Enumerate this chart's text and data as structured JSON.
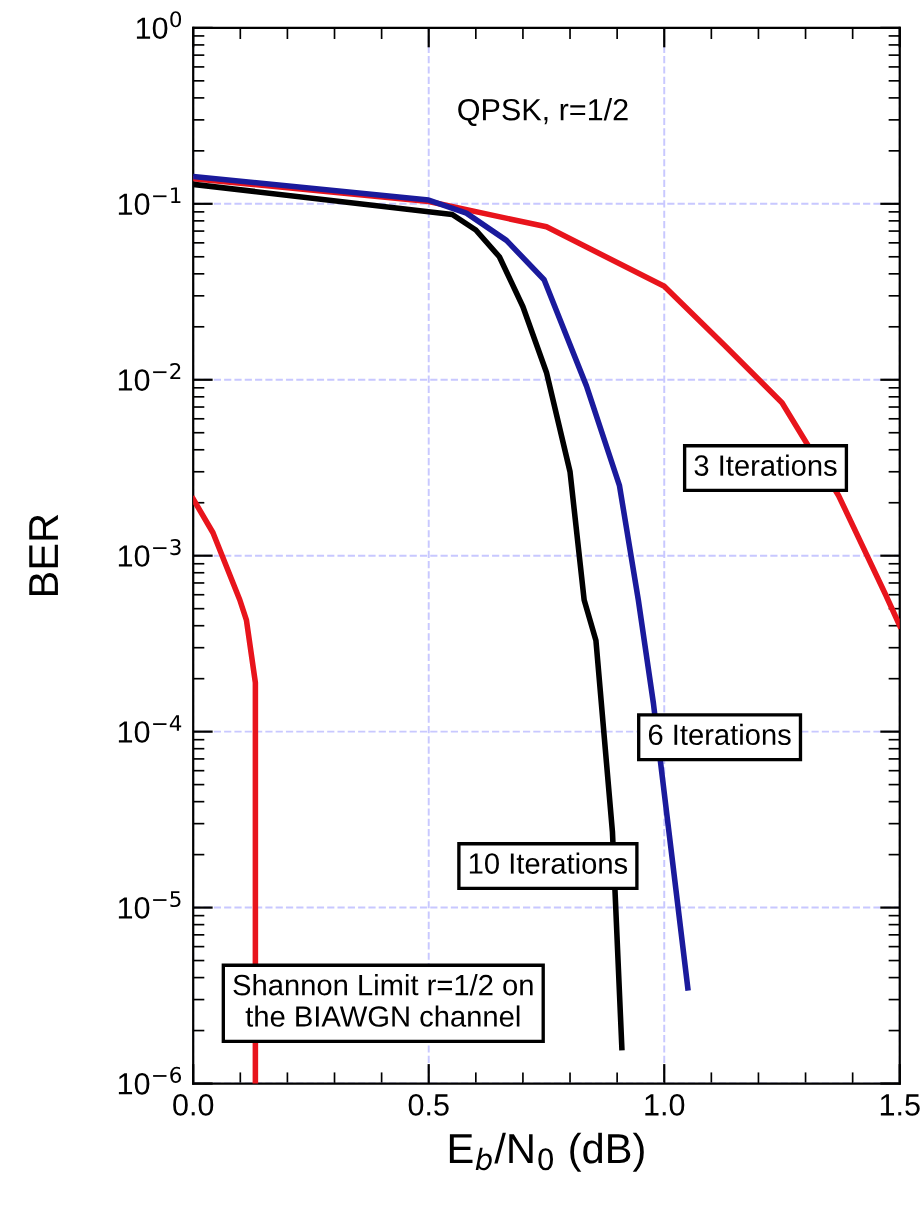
{
  "chart_data": {
    "type": "line",
    "title": "QPSK, r=1/2",
    "xlabel": "E$_{b}$/N$_{0}$ (dB)",
    "ylabel": "BER",
    "log": "y",
    "grid": true,
    "legend": false,
    "marker": "none",
    "line_style": "solid",
    "xlim": [
      0,
      1.5
    ],
    "xticks": [
      {
        "value": 0,
        "label": "0.0"
      },
      {
        "value": 0.5,
        "label": "0.5"
      },
      {
        "value": 1,
        "label": "1.0"
      },
      {
        "value": 1.5,
        "label": "1.5"
      }
    ],
    "ylim": [
      1e-06,
      1
    ],
    "yticks": [
      {
        "value": 1e-06,
        "label": "10$^{−6}$"
      },
      {
        "value": 1e-05,
        "label": "10$^{−5}$"
      },
      {
        "value": 0.0001,
        "label": "10$^{−4}$"
      },
      {
        "value": 0.001,
        "label": "10$^{−3}$"
      },
      {
        "value": 0.01,
        "label": "10$^{−2}$"
      },
      {
        "value": 0.1,
        "label": "10$^{−1}$"
      },
      {
        "value": 1,
        "label": "10$^{0}$"
      }
    ],
    "series": [
      {
        "color": "#e8141c",
        "x": [
          0,
          0.5,
          0.75,
          1.0,
          1.13,
          1.25,
          1.37,
          1.47,
          1.5
        ],
        "values": [
          0.139,
          0.103,
          0.074,
          0.034,
          0.0155,
          0.0074,
          0.0022,
          0.0006,
          0.0004
        ]
      },
      {
        "color": "#1a1a9c",
        "x": [
          0,
          0.5,
          0.58,
          0.665,
          0.745,
          0.835,
          0.905,
          0.945,
          0.977,
          1.05
        ],
        "values": [
          0.143,
          0.105,
          0.0885,
          0.062,
          0.037,
          0.0092,
          0.0025,
          0.00056,
          0.000145,
          3.5e-06
        ]
      },
      {
        "color": "#000000",
        "x": [
          0,
          0.55,
          0.6,
          0.65,
          0.7,
          0.75,
          0.8,
          0.83,
          0.855,
          0.89,
          0.91
        ],
        "values": [
          0.129,
          0.087,
          0.071,
          0.05,
          0.026,
          0.011,
          0.003,
          0.00056,
          0.00033,
          2.7e-05,
          1.6e-06
        ]
      },
      {
        "color": "#e8141c",
        "x": [
          0,
          0.042,
          0.099,
          0.113,
          0.132,
          0.132
        ],
        "values": [
          0.0021,
          0.00135,
          0.00056,
          0.00043,
          0.00019,
          1e-06
        ]
      }
    ],
    "annotations": [
      "3 Iterations",
      "6 Iterations",
      "10 Iterations",
      "Shannon Limit r=1/2 on\nthe BIAWGN channel"
    ]
  }
}
